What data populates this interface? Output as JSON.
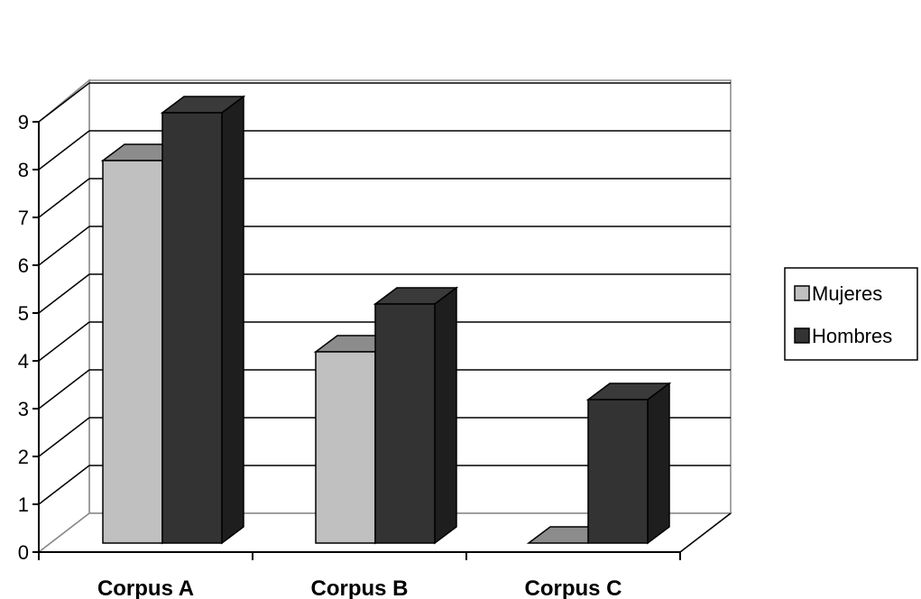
{
  "chart_data": {
    "type": "bar",
    "style": "3d-clustered-column",
    "categories": [
      "Corpus A",
      "Corpus B",
      "Corpus C"
    ],
    "series": [
      {
        "name": "Mujeres",
        "values": [
          8,
          4,
          0
        ],
        "color": "#c0c0c0"
      },
      {
        "name": "Hombres",
        "values": [
          9,
          5,
          3
        ],
        "color": "#333333"
      }
    ],
    "title": "",
    "xlabel": "",
    "ylabel": "",
    "ylim": [
      0,
      9
    ],
    "yticks": [
      "0",
      "1",
      "2",
      "3",
      "4",
      "5",
      "6",
      "7",
      "8",
      "9"
    ],
    "grid": true,
    "legend_position": "right"
  }
}
